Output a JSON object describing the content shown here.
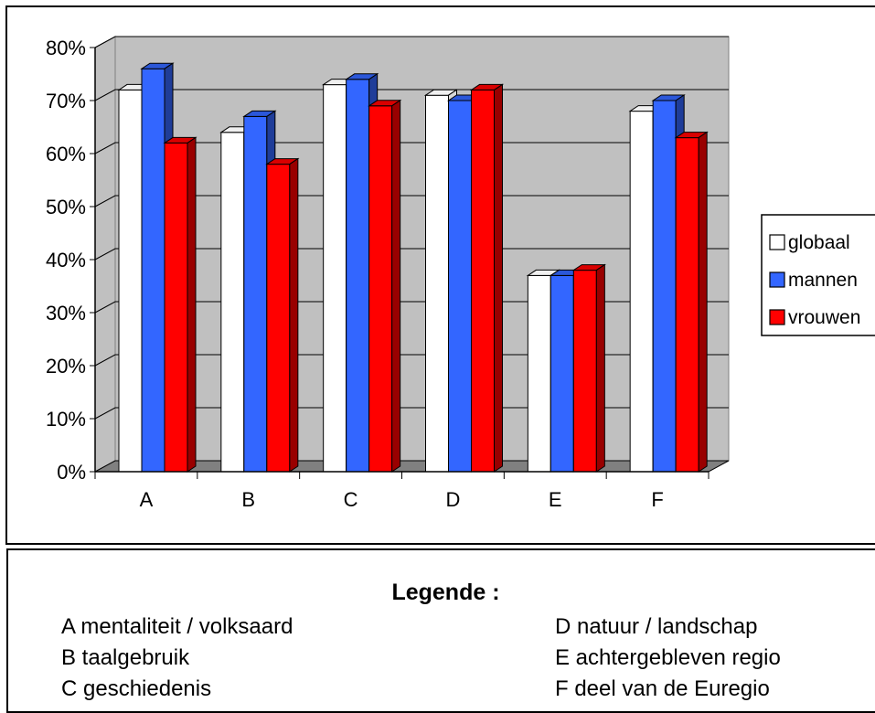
{
  "chart_data": {
    "type": "bar",
    "categories": [
      "A",
      "B",
      "C",
      "D",
      "E",
      "F"
    ],
    "series": [
      {
        "name": "globaal",
        "color": "#ffffff",
        "values": [
          72,
          64,
          73,
          71,
          37,
          68
        ]
      },
      {
        "name": "mannen",
        "color": "#3366ff",
        "values": [
          76,
          67,
          74,
          70,
          37,
          70
        ]
      },
      {
        "name": "vrouwen",
        "color": "#ff0000",
        "values": [
          62,
          58,
          69,
          72,
          38,
          63
        ]
      }
    ],
    "yticks": [
      "0%",
      "10%",
      "20%",
      "30%",
      "40%",
      "50%",
      "60%",
      "70%",
      "80%"
    ],
    "ylim": [
      0,
      80
    ],
    "grid": true,
    "legend_position": "right",
    "plot_background": "#c0c0c0",
    "floor_color": "#808080"
  },
  "category_legend": {
    "title": "Legende :",
    "items": [
      "A mentaliteit / volksaard",
      "B taalgebruik",
      "C geschiedenis",
      "D natuur / landschap",
      "E achtergebleven regio",
      "F deel van de Euregio"
    ]
  }
}
